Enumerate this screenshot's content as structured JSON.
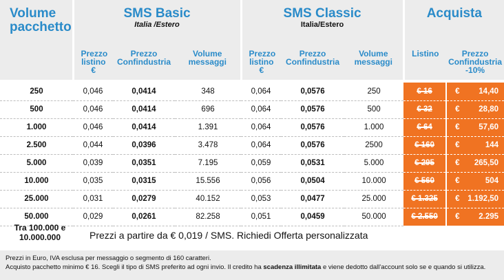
{
  "headers": {
    "volume_title": "Volume pacchetto",
    "basic_title": "SMS Basic",
    "basic_sub": "Italia /Estero",
    "classic_title": "SMS Classic",
    "classic_sub": "Italia/Estero",
    "buy_title": "Acquista"
  },
  "columns": {
    "listino": "Prezzo listino €",
    "confindustria": "Prezzo Confindustria",
    "volume_msg": "Volume messaggi",
    "listino_buy": "Listino",
    "confindustria_buy": "Prezzo Confindustria -10%"
  },
  "rows": [
    {
      "volume": "250",
      "b_listino": "0,046",
      "b_conf": "0,0414",
      "b_vol": "348",
      "c_listino": "0,064",
      "c_conf": "0,0576",
      "c_vol": "250",
      "buy_listino": "€ 16",
      "buy_conf_cur": "€",
      "buy_conf": "14,40"
    },
    {
      "volume": "500",
      "b_listino": "0,046",
      "b_conf": "0,0414",
      "b_vol": "696",
      "c_listino": "0,064",
      "c_conf": "0,0576",
      "c_vol": "500",
      "buy_listino": "€ 32",
      "buy_conf_cur": "€",
      "buy_conf": "28,80"
    },
    {
      "volume": "1.000",
      "b_listino": "0,046",
      "b_conf": "0,0414",
      "b_vol": "1.391",
      "c_listino": "0,064",
      "c_conf": "0,0576",
      "c_vol": "1.000",
      "buy_listino": "€ 64",
      "buy_conf_cur": "€",
      "buy_conf": "57,60"
    },
    {
      "volume": "2.500",
      "b_listino": "0,044",
      "b_conf": "0,0396",
      "b_vol": "3.478",
      "c_listino": "0,064",
      "c_conf": "0,0576",
      "c_vol": "2500",
      "buy_listino": "€ 160",
      "buy_conf_cur": "€",
      "buy_conf": "144"
    },
    {
      "volume": "5.000",
      "b_listino": "0,039",
      "b_conf": "0,0351",
      "b_vol": "7.195",
      "c_listino": "0,059",
      "c_conf": "0,0531",
      "c_vol": "5.000",
      "buy_listino": "€ 295",
      "buy_conf_cur": "€",
      "buy_conf": "265,50"
    },
    {
      "volume": "10.000",
      "b_listino": "0,035",
      "b_conf": "0,0315",
      "b_vol": "15.556",
      "c_listino": "0,056",
      "c_conf": "0,0504",
      "c_vol": "10.000",
      "buy_listino": "€ 560",
      "buy_conf_cur": "€",
      "buy_conf": "504"
    },
    {
      "volume": "25.000",
      "b_listino": "0,031",
      "b_conf": "0,0279",
      "b_vol": "40.152",
      "c_listino": "0,053",
      "c_conf": "0,0477",
      "c_vol": "25.000",
      "buy_listino": "€ 1.325",
      "buy_conf_cur": "€",
      "buy_conf": "1.192,50"
    },
    {
      "volume": "50.000",
      "b_listino": "0,029",
      "b_conf": "0,0261",
      "b_vol": "82.258",
      "c_listino": "0,051",
      "c_conf": "0,0459",
      "c_vol": "50.000",
      "buy_listino": "€ 2.550",
      "buy_conf_cur": "€",
      "buy_conf": "2.295"
    }
  ],
  "footer": {
    "tra_label": "Tra 100.000 e 10.000.000",
    "offer_text": "Prezzi a partire da € 0,019 / SMS. Richiedi Offerta personalizzata",
    "note_line1": "Prezzi in Euro, IVA esclusa per messaggio o segmento di 160 caratteri.",
    "note_line2_a": "Acquisto pacchetto minimo € 16. Scegli il tipo di SMS preferito ad ogni invio. Il credito ha ",
    "note_line2_b": "scadenza illimitata",
    "note_line2_c": " e viene dedotto dall'account solo se e quando si utilizza."
  },
  "colors": {
    "accent_blue": "#2a8bc9",
    "buy_orange": "#f07322",
    "header_gray": "#ececec"
  }
}
